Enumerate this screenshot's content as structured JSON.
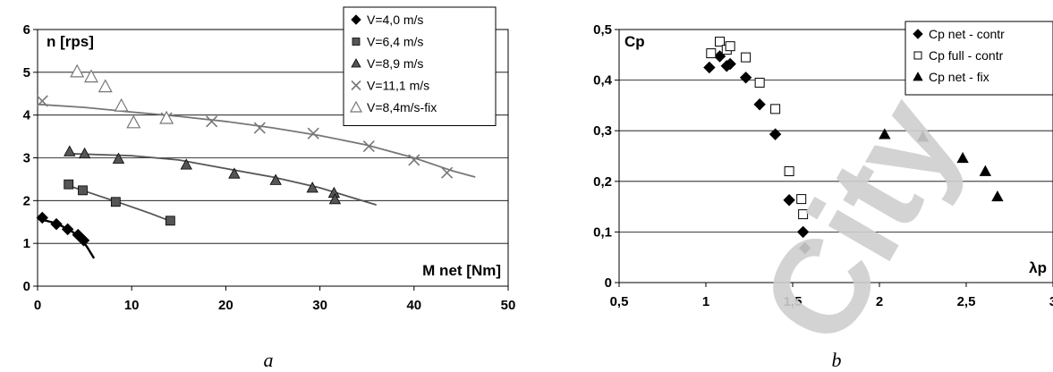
{
  "watermark": "City",
  "chart_data": [
    {
      "type": "scatter",
      "caption": "a",
      "ylabel": "n [rps]",
      "xlabel": "M net [Nm]",
      "xlim": [
        0,
        50
      ],
      "ylim": [
        0,
        6
      ],
      "xticks": [
        "0",
        "10",
        "20",
        "30",
        "40",
        "50"
      ],
      "yticks": [
        "0",
        "1",
        "2",
        "3",
        "4",
        "5",
        "6"
      ],
      "grid": "horizontal",
      "legend_position": "top-right",
      "series": [
        {
          "name": "V=4,0 m/s",
          "marker": "diamond",
          "color": "#000000",
          "points": [
            [
              0.5,
              1.6
            ],
            [
              2,
              1.45
            ],
            [
              3.2,
              1.33
            ],
            [
              4.3,
              1.2
            ],
            [
              4.9,
              1.07
            ]
          ],
          "trend": [
            [
              0,
              1.58
            ],
            [
              2,
              1.47
            ],
            [
              3.5,
              1.3
            ],
            [
              4.5,
              1.15
            ],
            [
              5.3,
              0.9
            ],
            [
              6,
              0.65
            ]
          ]
        },
        {
          "name": "V=6,4 m/s",
          "marker": "square",
          "color": "#555555",
          "points": [
            [
              3.3,
              2.38
            ],
            [
              4.8,
              2.24
            ],
            [
              8.3,
              1.97
            ],
            [
              14.1,
              1.53
            ]
          ],
          "trend": [
            [
              3.3,
              2.35
            ],
            [
              6,
              2.15
            ],
            [
              9,
              1.93
            ],
            [
              12,
              1.7
            ],
            [
              14,
              1.53
            ]
          ]
        },
        {
          "name": "V=8,9 m/s",
          "marker": "triangle",
          "color": "#555555",
          "points": [
            [
              3.4,
              3.15
            ],
            [
              5,
              3.1
            ],
            [
              8.6,
              2.98
            ],
            [
              15.8,
              2.84
            ],
            [
              20.9,
              2.63
            ],
            [
              25.3,
              2.48
            ],
            [
              29.2,
              2.3
            ],
            [
              31.5,
              2.18
            ],
            [
              31.6,
              2.03
            ]
          ],
          "trend": [
            [
              3,
              3.1
            ],
            [
              10,
              3.05
            ],
            [
              15,
              2.95
            ],
            [
              20,
              2.75
            ],
            [
              25,
              2.55
            ],
            [
              30,
              2.3
            ],
            [
              33,
              2.1
            ],
            [
              36,
              1.9
            ]
          ]
        },
        {
          "name": "V=11,1 m/s",
          "marker": "x",
          "color": "#777777",
          "points": [
            [
              0.5,
              4.33
            ],
            [
              13.7,
              3.93
            ],
            [
              18.5,
              3.85
            ],
            [
              23.6,
              3.7
            ],
            [
              29.3,
              3.57
            ],
            [
              35.2,
              3.27
            ],
            [
              40,
              2.95
            ],
            [
              43.5,
              2.65
            ]
          ],
          "trend": [
            [
              0,
              4.25
            ],
            [
              5,
              4.18
            ],
            [
              10,
              4.07
            ],
            [
              15,
              3.97
            ],
            [
              20,
              3.85
            ],
            [
              25,
              3.7
            ],
            [
              30,
              3.52
            ],
            [
              35,
              3.3
            ],
            [
              40,
              3.0
            ],
            [
              44,
              2.7
            ],
            [
              46.5,
              2.55
            ]
          ]
        },
        {
          "name": "V=8,4m/s-fix",
          "marker": "triangle-open",
          "color": "#777777",
          "points": [
            [
              4.2,
              5.02
            ],
            [
              5.7,
              4.9
            ],
            [
              7.2,
              4.67
            ],
            [
              8.9,
              4.22
            ],
            [
              10.2,
              3.83
            ],
            [
              13.7,
              3.93
            ]
          ]
        }
      ]
    },
    {
      "type": "scatter",
      "caption": "b",
      "ylabel": "Cp",
      "xlabel": "λp",
      "xlim": [
        0.5,
        3
      ],
      "ylim": [
        0,
        0.5
      ],
      "xticks": [
        "0,5",
        "1",
        "1,5",
        "2",
        "2,5",
        "3"
      ],
      "yticks": [
        "0",
        "0,1",
        "0,2",
        "0,3",
        "0,4",
        "0,5"
      ],
      "grid": "horizontal",
      "legend_position": "top-right",
      "series": [
        {
          "name": "Cp net - contr",
          "marker": "diamond",
          "color": "#000000",
          "points": [
            [
              1.02,
              0.425
            ],
            [
              1.08,
              0.447
            ],
            [
              1.12,
              0.428
            ],
            [
              1.14,
              0.432
            ],
            [
              1.23,
              0.405
            ],
            [
              1.31,
              0.352
            ],
            [
              1.4,
              0.293
            ],
            [
              1.48,
              0.163
            ],
            [
              1.56,
              0.1
            ],
            [
              1.57,
              0.068
            ]
          ]
        },
        {
          "name": "Cp full - contr",
          "marker": "square-open",
          "color": "#000000",
          "points": [
            [
              1.03,
              0.453
            ],
            [
              1.08,
              0.476
            ],
            [
              1.12,
              0.46
            ],
            [
              1.14,
              0.467
            ],
            [
              1.23,
              0.445
            ],
            [
              1.31,
              0.395
            ],
            [
              1.4,
              0.343
            ],
            [
              1.48,
              0.22
            ],
            [
              1.55,
              0.165
            ],
            [
              1.56,
              0.135
            ]
          ]
        },
        {
          "name": "Cp net - fix",
          "marker": "triangle",
          "color": "#000000",
          "points": [
            [
              2.03,
              0.293
            ],
            [
              2.25,
              0.288
            ],
            [
              2.48,
              0.246
            ],
            [
              2.61,
              0.22
            ],
            [
              2.68,
              0.17
            ]
          ]
        }
      ]
    }
  ]
}
